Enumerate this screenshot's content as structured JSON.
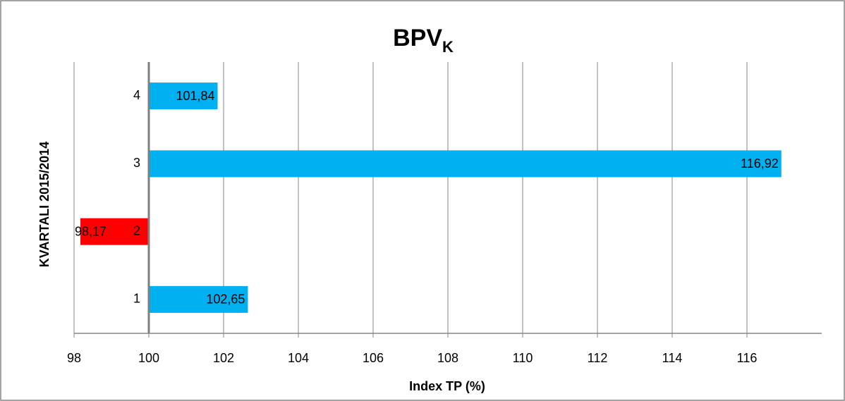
{
  "chart_data": {
    "type": "barh",
    "title": "BPV",
    "title_subscript": "K",
    "xlabel": "Index TP (%)",
    "ylabel": "KVARTALI 2015/2014",
    "categories": [
      "1",
      "2",
      "3",
      "4"
    ],
    "values": [
      102.65,
      98.17,
      116.92,
      101.84
    ],
    "value_labels": [
      "102,65",
      "98,17",
      "116,92",
      "101,84"
    ],
    "colors": [
      "#00b0f0",
      "#ff0000",
      "#00b0f0",
      "#00b0f0"
    ],
    "base": 100,
    "xlim": [
      98,
      118
    ],
    "xticks": [
      98,
      100,
      102,
      104,
      106,
      108,
      110,
      112,
      114,
      116
    ],
    "grid": true
  }
}
